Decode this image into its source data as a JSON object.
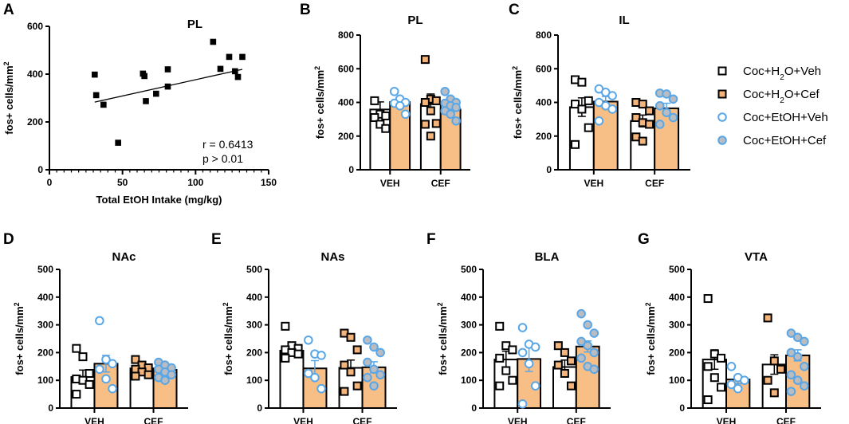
{
  "colors": {
    "axis": "#000000",
    "orange": "#f7be86",
    "orange_pt": "#f4b47a",
    "blue": "#5aa7e8",
    "blue_fill": "#b9bcc0",
    "white": "#ffffff"
  },
  "legend": [
    {
      "label_parts": [
        "Coc+H",
        "2",
        "O+Veh"
      ],
      "marker": "square-open"
    },
    {
      "label_parts": [
        "Coc+H",
        "2",
        "O+Cef"
      ],
      "marker": "square-orange"
    },
    {
      "label_parts": [
        "Coc+EtOH+Veh"
      ],
      "marker": "circle-open"
    },
    {
      "label_parts": [
        "Coc+EtOH+Cef"
      ],
      "marker": "circle-filled"
    }
  ],
  "chart_data": [
    {
      "panel": "A",
      "type": "scatter",
      "title": "PL",
      "xlabel": "Total EtOH Intake (mg/kg)",
      "ylabel": "fos+ cells/mm",
      "ylabel_sup": "2",
      "xlim": [
        0,
        150
      ],
      "ylim": [
        0,
        600
      ],
      "xticks": [
        0,
        50,
        100,
        150
      ],
      "yticks": [
        0,
        200,
        400,
        600
      ],
      "points": [
        {
          "x": 31,
          "y": 398
        },
        {
          "x": 32,
          "y": 312
        },
        {
          "x": 37,
          "y": 272
        },
        {
          "x": 47,
          "y": 113
        },
        {
          "x": 64,
          "y": 402
        },
        {
          "x": 65,
          "y": 392
        },
        {
          "x": 66,
          "y": 287
        },
        {
          "x": 73,
          "y": 318
        },
        {
          "x": 81,
          "y": 420
        },
        {
          "x": 81,
          "y": 348
        },
        {
          "x": 112,
          "y": 535
        },
        {
          "x": 117,
          "y": 422
        },
        {
          "x": 123,
          "y": 472
        },
        {
          "x": 127,
          "y": 412
        },
        {
          "x": 129,
          "y": 388
        },
        {
          "x": 132,
          "y": 472
        }
      ],
      "fit_line": {
        "x": [
          31,
          132
        ],
        "y": [
          283,
          420
        ]
      },
      "annotations": [
        "r = 0.6413",
        "p > 0.01"
      ]
    },
    {
      "panel": "B",
      "type": "bar",
      "title": "PL",
      "ylabel": "fos+ cells/mm",
      "ylabel_sup": "2",
      "ylim": [
        0,
        800
      ],
      "yticks": [
        0,
        200,
        400,
        600,
        800
      ],
      "categories": [
        "VEH",
        "CEF"
      ],
      "series": [
        {
          "name": "H2O",
          "values": [
            358,
            390
          ],
          "sem": [
            45,
            60
          ],
          "points": [
            [
              410,
              330,
              320,
              310,
              270,
              245
            ],
            [
              655,
              420,
              410,
              400,
              350,
              275,
              270,
              200
            ]
          ]
        },
        {
          "name": "EtOH",
          "values": [
            402,
            358
          ],
          "sem": [
            22,
            30
          ],
          "points": [
            [
              465,
              420,
              400,
              395,
              380,
              330
            ],
            [
              465,
              420,
              400,
              395,
              380,
              370,
              350,
              330,
              290
            ]
          ]
        }
      ]
    },
    {
      "panel": "C",
      "type": "bar",
      "title": "IL",
      "ylabel": "fos+ cells/mm",
      "ylabel_sup": "2",
      "ylim": [
        0,
        800
      ],
      "yticks": [
        0,
        200,
        400,
        600,
        800
      ],
      "categories": [
        "VEH",
        "CEF"
      ],
      "series": [
        {
          "name": "H2O",
          "values": [
            372,
            290
          ],
          "sem": [
            55,
            35
          ],
          "points": [
            [
              535,
              520,
              410,
              390,
              360,
              250,
              150
            ],
            [
              400,
              390,
              350,
              310,
              280,
              270,
              195,
              170
            ]
          ]
        },
        {
          "name": "EtOH",
          "values": [
            405,
            365
          ],
          "sem": [
            30,
            30
          ],
          "points": [
            [
              480,
              460,
              440,
              400,
              380,
              360,
              290
            ],
            [
              455,
              450,
              420,
              380,
              340,
              310,
              270
            ]
          ]
        }
      ]
    },
    {
      "panel": "D",
      "type": "bar",
      "title": "NAc",
      "ylabel": "fos+ cells/mm",
      "ylabel_sup": "2",
      "ylim": [
        0,
        500
      ],
      "yticks": [
        0,
        100,
        200,
        300,
        400,
        500
      ],
      "categories": [
        "VEH",
        "CEF"
      ],
      "series": [
        {
          "name": "H2O",
          "values": [
            112,
            143
          ],
          "sem": [
            25,
            10
          ],
          "points": [
            [
              215,
              185,
              125,
              105,
              100,
              85,
              50
            ],
            [
              175,
              155,
              145,
              140,
              130,
              120,
              115
            ]
          ]
        },
        {
          "name": "EtOH",
          "values": [
            160,
            138
          ],
          "sem": [
            30,
            12
          ],
          "points": [
            [
              315,
              175,
              160,
              140,
              105,
              70
            ],
            [
              165,
              155,
              145,
              140,
              130,
              120,
              110,
              100
            ]
          ]
        }
      ]
    },
    {
      "panel": "E",
      "type": "bar",
      "title": "NAs",
      "ylabel": "fos+ cells/mm",
      "ylabel_sup": "2",
      "ylim": [
        0,
        500
      ],
      "yticks": [
        0,
        100,
        200,
        300,
        400,
        500
      ],
      "categories": [
        "VEH",
        "CEF"
      ],
      "series": [
        {
          "name": "H2O",
          "values": [
            207,
            145
          ],
          "sem": [
            15,
            28
          ],
          "points": [
            [
              295,
              225,
              215,
              210,
              200,
              195,
              180
            ],
            [
              270,
              255,
              210,
              155,
              130,
              80,
              60
            ]
          ]
        },
        {
          "name": "EtOH",
          "values": [
            143,
            147
          ],
          "sem": [
            28,
            20
          ],
          "points": [
            [
              245,
              195,
              190,
              125,
              110,
              70
            ],
            [
              245,
              220,
              200,
              165,
              140,
              120,
              110,
              80
            ]
          ]
        }
      ]
    },
    {
      "panel": "F",
      "type": "bar",
      "title": "BLA",
      "ylabel": "fos+ cells/mm",
      "ylabel_sup": "2",
      "ylim": [
        0,
        500
      ],
      "yticks": [
        0,
        100,
        200,
        300,
        400,
        500
      ],
      "categories": [
        "VEH",
        "CEF"
      ],
      "series": [
        {
          "name": "H2O",
          "values": [
            175,
            148
          ],
          "sem": [
            30,
            25
          ],
          "points": [
            [
              295,
              225,
              210,
              180,
              135,
              100,
              80
            ],
            [
              225,
              200,
              170,
              155,
              125,
              80
            ]
          ]
        },
        {
          "name": "EtOH",
          "values": [
            177,
            222
          ],
          "sem": [
            45,
            20
          ],
          "points": [
            [
              290,
              230,
              220,
              200,
              160,
              80,
              15
            ],
            [
              340,
              300,
              270,
              240,
              225,
              200,
              180,
              150,
              140
            ]
          ]
        }
      ]
    },
    {
      "panel": "G",
      "type": "bar",
      "title": "VTA",
      "ylabel": "fos+ cells/mm",
      "ylabel_sup": "2",
      "ylim": [
        0,
        500
      ],
      "yticks": [
        0,
        100,
        200,
        300,
        400,
        500
      ],
      "categories": [
        "VEH",
        "CEF"
      ],
      "series": [
        {
          "name": "H2O",
          "values": [
            175,
            157
          ],
          "sem": [
            35,
            35
          ],
          "points": [
            [
              395,
              195,
              180,
              150,
              110,
              75,
              30
            ],
            [
              325,
              170,
              140,
              100,
              55
            ]
          ]
        },
        {
          "name": "EtOH",
          "values": [
            103,
            190
          ],
          "sem": [
            15,
            20
          ],
          "points": [
            [
              150,
              110,
              100,
              85,
              70
            ],
            [
              270,
              255,
              240,
              200,
              185,
              150,
              120,
              100,
              80,
              60
            ]
          ]
        }
      ]
    }
  ]
}
